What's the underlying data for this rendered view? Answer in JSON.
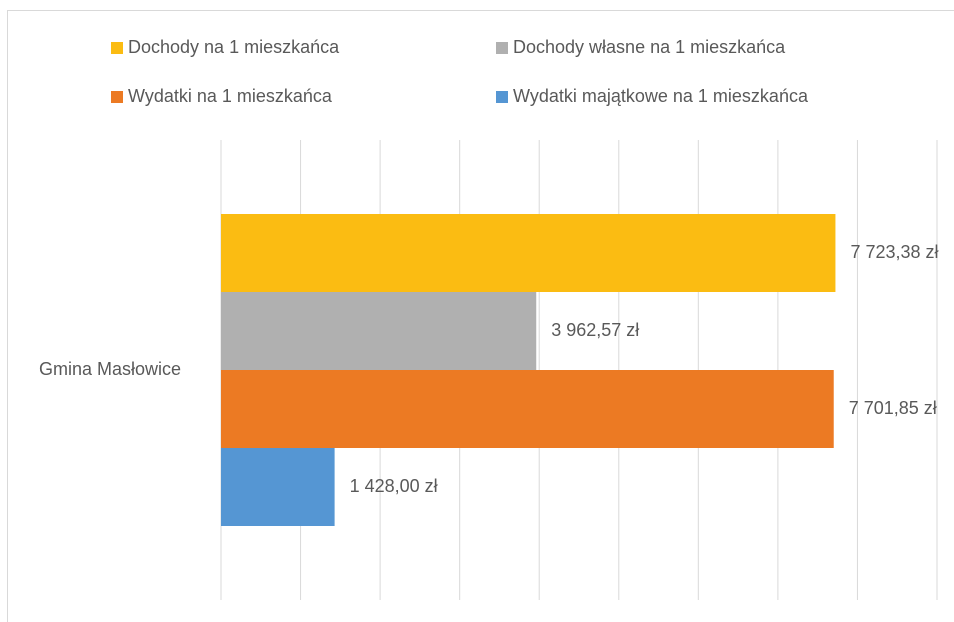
{
  "chart_data": {
    "type": "bar",
    "orientation": "horizontal",
    "categories": [
      "Gmina Masłowice"
    ],
    "series": [
      {
        "name": "Dochody na 1 mieszkańca",
        "color": "#fbbc12",
        "values": [
          7723.38
        ],
        "value_labels": [
          "7 723,38 zł"
        ]
      },
      {
        "name": "Dochody własne na 1 mieszkańca",
        "color": "#b0b0b0",
        "values": [
          3962.57
        ],
        "value_labels": [
          "3 962,57 zł"
        ]
      },
      {
        "name": "Wydatki na 1 mieszkańca",
        "color": "#ec7a23",
        "values": [
          7701.85
        ],
        "value_labels": [
          "7 701,85 zł"
        ]
      },
      {
        "name": "Wydatki majątkowe na 1 mieszkańca",
        "color": "#5596d3",
        "values": [
          1428.0
        ],
        "value_labels": [
          "1 428,00 zł"
        ]
      }
    ],
    "xlim": [
      0,
      9000
    ],
    "xticks": [
      0,
      1000,
      2000,
      3000,
      4000,
      5000,
      6000,
      7000,
      8000,
      9000
    ],
    "grid": true,
    "legend": "top"
  }
}
